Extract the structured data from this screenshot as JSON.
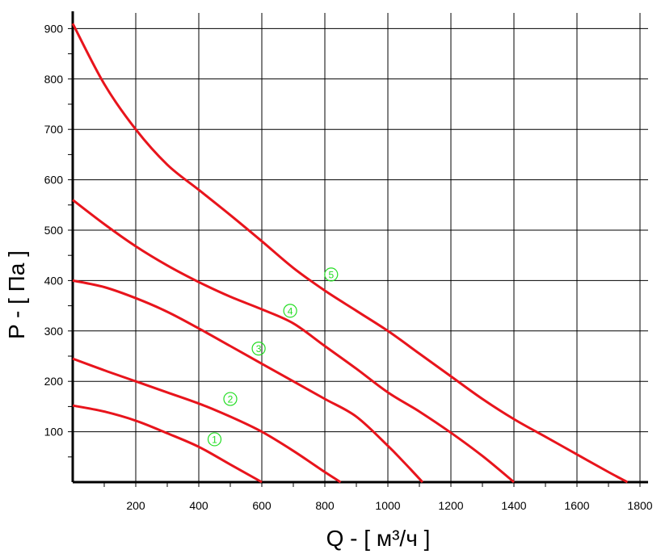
{
  "chart_data": {
    "type": "line",
    "xlabel": "Q - [ м³/ч ]",
    "ylabel": "P - [ Па ]",
    "xlim": [
      0,
      1800
    ],
    "ylim": [
      0,
      910
    ],
    "x_ticks": [
      "200",
      "400",
      "600",
      "800",
      "1000",
      "1200",
      "1400",
      "1600",
      "1800"
    ],
    "y_ticks": [
      "100",
      "200",
      "300",
      "400",
      "500",
      "600",
      "700",
      "800",
      "900"
    ],
    "grid": true,
    "legend": "none",
    "line_color": "#e8141c",
    "label_color": "#22dd22",
    "series": [
      {
        "label": "①",
        "label_at": [
          450,
          85
        ],
        "points": [
          [
            0,
            152
          ],
          [
            100,
            140
          ],
          [
            200,
            122
          ],
          [
            300,
            97
          ],
          [
            400,
            70
          ],
          [
            500,
            35
          ],
          [
            600,
            0
          ]
        ]
      },
      {
        "label": "②",
        "label_at": [
          500,
          165
        ],
        "points": [
          [
            0,
            245
          ],
          [
            100,
            222
          ],
          [
            200,
            200
          ],
          [
            300,
            178
          ],
          [
            400,
            156
          ],
          [
            500,
            130
          ],
          [
            600,
            100
          ],
          [
            700,
            62
          ],
          [
            800,
            20
          ],
          [
            850,
            0
          ]
        ]
      },
      {
        "label": "③",
        "label_at": [
          590,
          265
        ],
        "points": [
          [
            0,
            400
          ],
          [
            100,
            387
          ],
          [
            200,
            365
          ],
          [
            300,
            338
          ],
          [
            400,
            305
          ],
          [
            500,
            270
          ],
          [
            600,
            235
          ],
          [
            700,
            200
          ],
          [
            800,
            165
          ],
          [
            900,
            130
          ],
          [
            1000,
            72
          ],
          [
            1050,
            40
          ],
          [
            1110,
            0
          ]
        ]
      },
      {
        "label": "④",
        "label_at": [
          690,
          340
        ],
        "points": [
          [
            0,
            560
          ],
          [
            100,
            512
          ],
          [
            200,
            468
          ],
          [
            300,
            430
          ],
          [
            400,
            397
          ],
          [
            500,
            368
          ],
          [
            600,
            343
          ],
          [
            700,
            315
          ],
          [
            800,
            270
          ],
          [
            900,
            225
          ],
          [
            1000,
            178
          ],
          [
            1100,
            140
          ],
          [
            1200,
            98
          ],
          [
            1300,
            52
          ],
          [
            1400,
            0
          ]
        ]
      },
      {
        "label": "⑤",
        "label_at": [
          820,
          412
        ],
        "points": [
          [
            0,
            910
          ],
          [
            100,
            790
          ],
          [
            200,
            700
          ],
          [
            300,
            630
          ],
          [
            400,
            580
          ],
          [
            500,
            530
          ],
          [
            600,
            478
          ],
          [
            700,
            425
          ],
          [
            800,
            380
          ],
          [
            900,
            340
          ],
          [
            1000,
            300
          ],
          [
            1100,
            255
          ],
          [
            1200,
            210
          ],
          [
            1300,
            165
          ],
          [
            1400,
            125
          ],
          [
            1500,
            90
          ],
          [
            1600,
            55
          ],
          [
            1700,
            20
          ],
          [
            1760,
            0
          ]
        ]
      }
    ]
  }
}
